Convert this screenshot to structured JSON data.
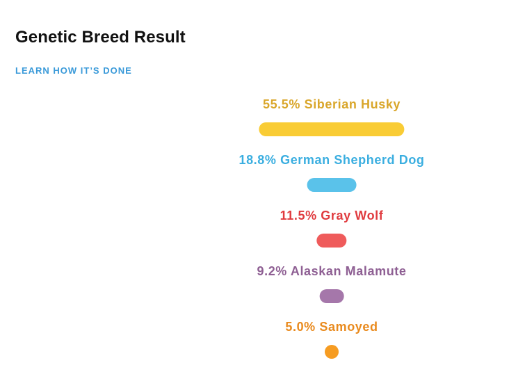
{
  "page": {
    "title": "Genetic Breed Result",
    "learn_link": "LEARN HOW IT’S DONE",
    "link_color": "#3a9ad9"
  },
  "breeds": [
    {
      "label": "55.5% Siberian Husky",
      "percent": 55.5,
      "color": "#f9cc35",
      "text_color": "#d9a62a"
    },
    {
      "label": "18.8% German Shepherd Dog",
      "percent": 18.8,
      "color": "#5ac2ea",
      "text_color": "#3aaee0"
    },
    {
      "label": "11.5% Gray Wolf",
      "percent": 11.5,
      "color": "#ef5b5b",
      "text_color": "#e03a3e"
    },
    {
      "label": "9.2% Alaskan Malamute",
      "percent": 9.2,
      "color": "#a577aa",
      "text_color": "#8e5f93"
    },
    {
      "label": "5.0% Samoyed",
      "percent": 5.0,
      "color": "#f69c22",
      "text_color": "#e98a1d"
    }
  ]
}
